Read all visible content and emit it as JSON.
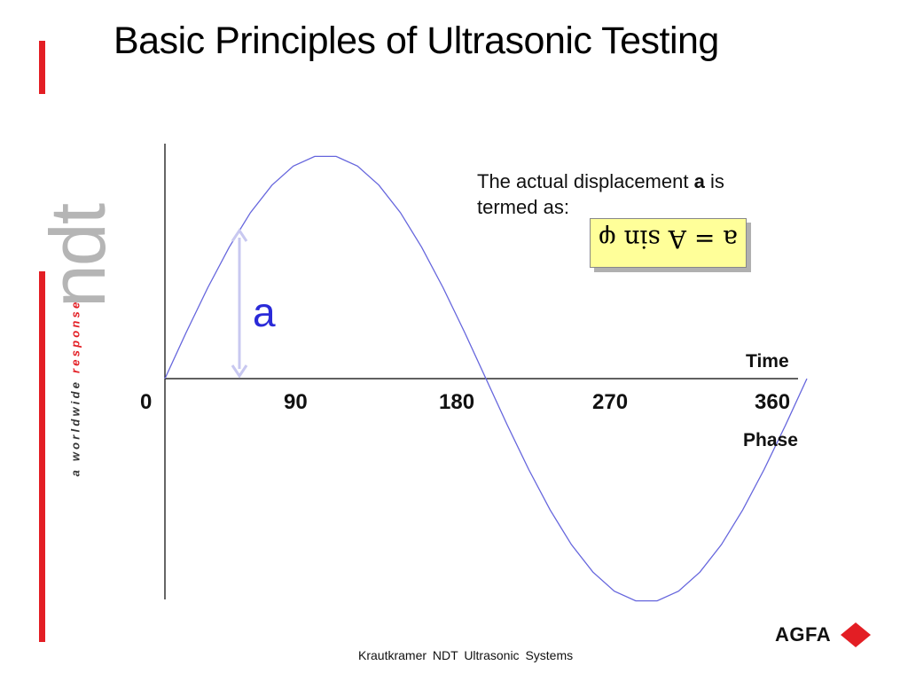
{
  "slide": {
    "title": "Basic Principles of Ultrasonic Testing",
    "footer": "Krautkramer  NDT  Ultrasonic  Systems"
  },
  "brand": {
    "logo_text": "ndt",
    "tagline_prefix": "a worldwide ",
    "tagline_suffix": "response",
    "company": "AGFA",
    "accent_color": "#e31e24"
  },
  "diagram": {
    "tick_labels": [
      "0",
      "90",
      "180",
      "270",
      "360"
    ],
    "time_label": "Time",
    "phase_label": "Phase",
    "displacement_label": "a",
    "description_prefix": "The actual displacement ",
    "description_bold": "a",
    "description_suffix": " is termed as:",
    "formula": "a = A sin φ",
    "wave_color": "#6666dd",
    "arrow_color": "#c8c8f0"
  }
}
